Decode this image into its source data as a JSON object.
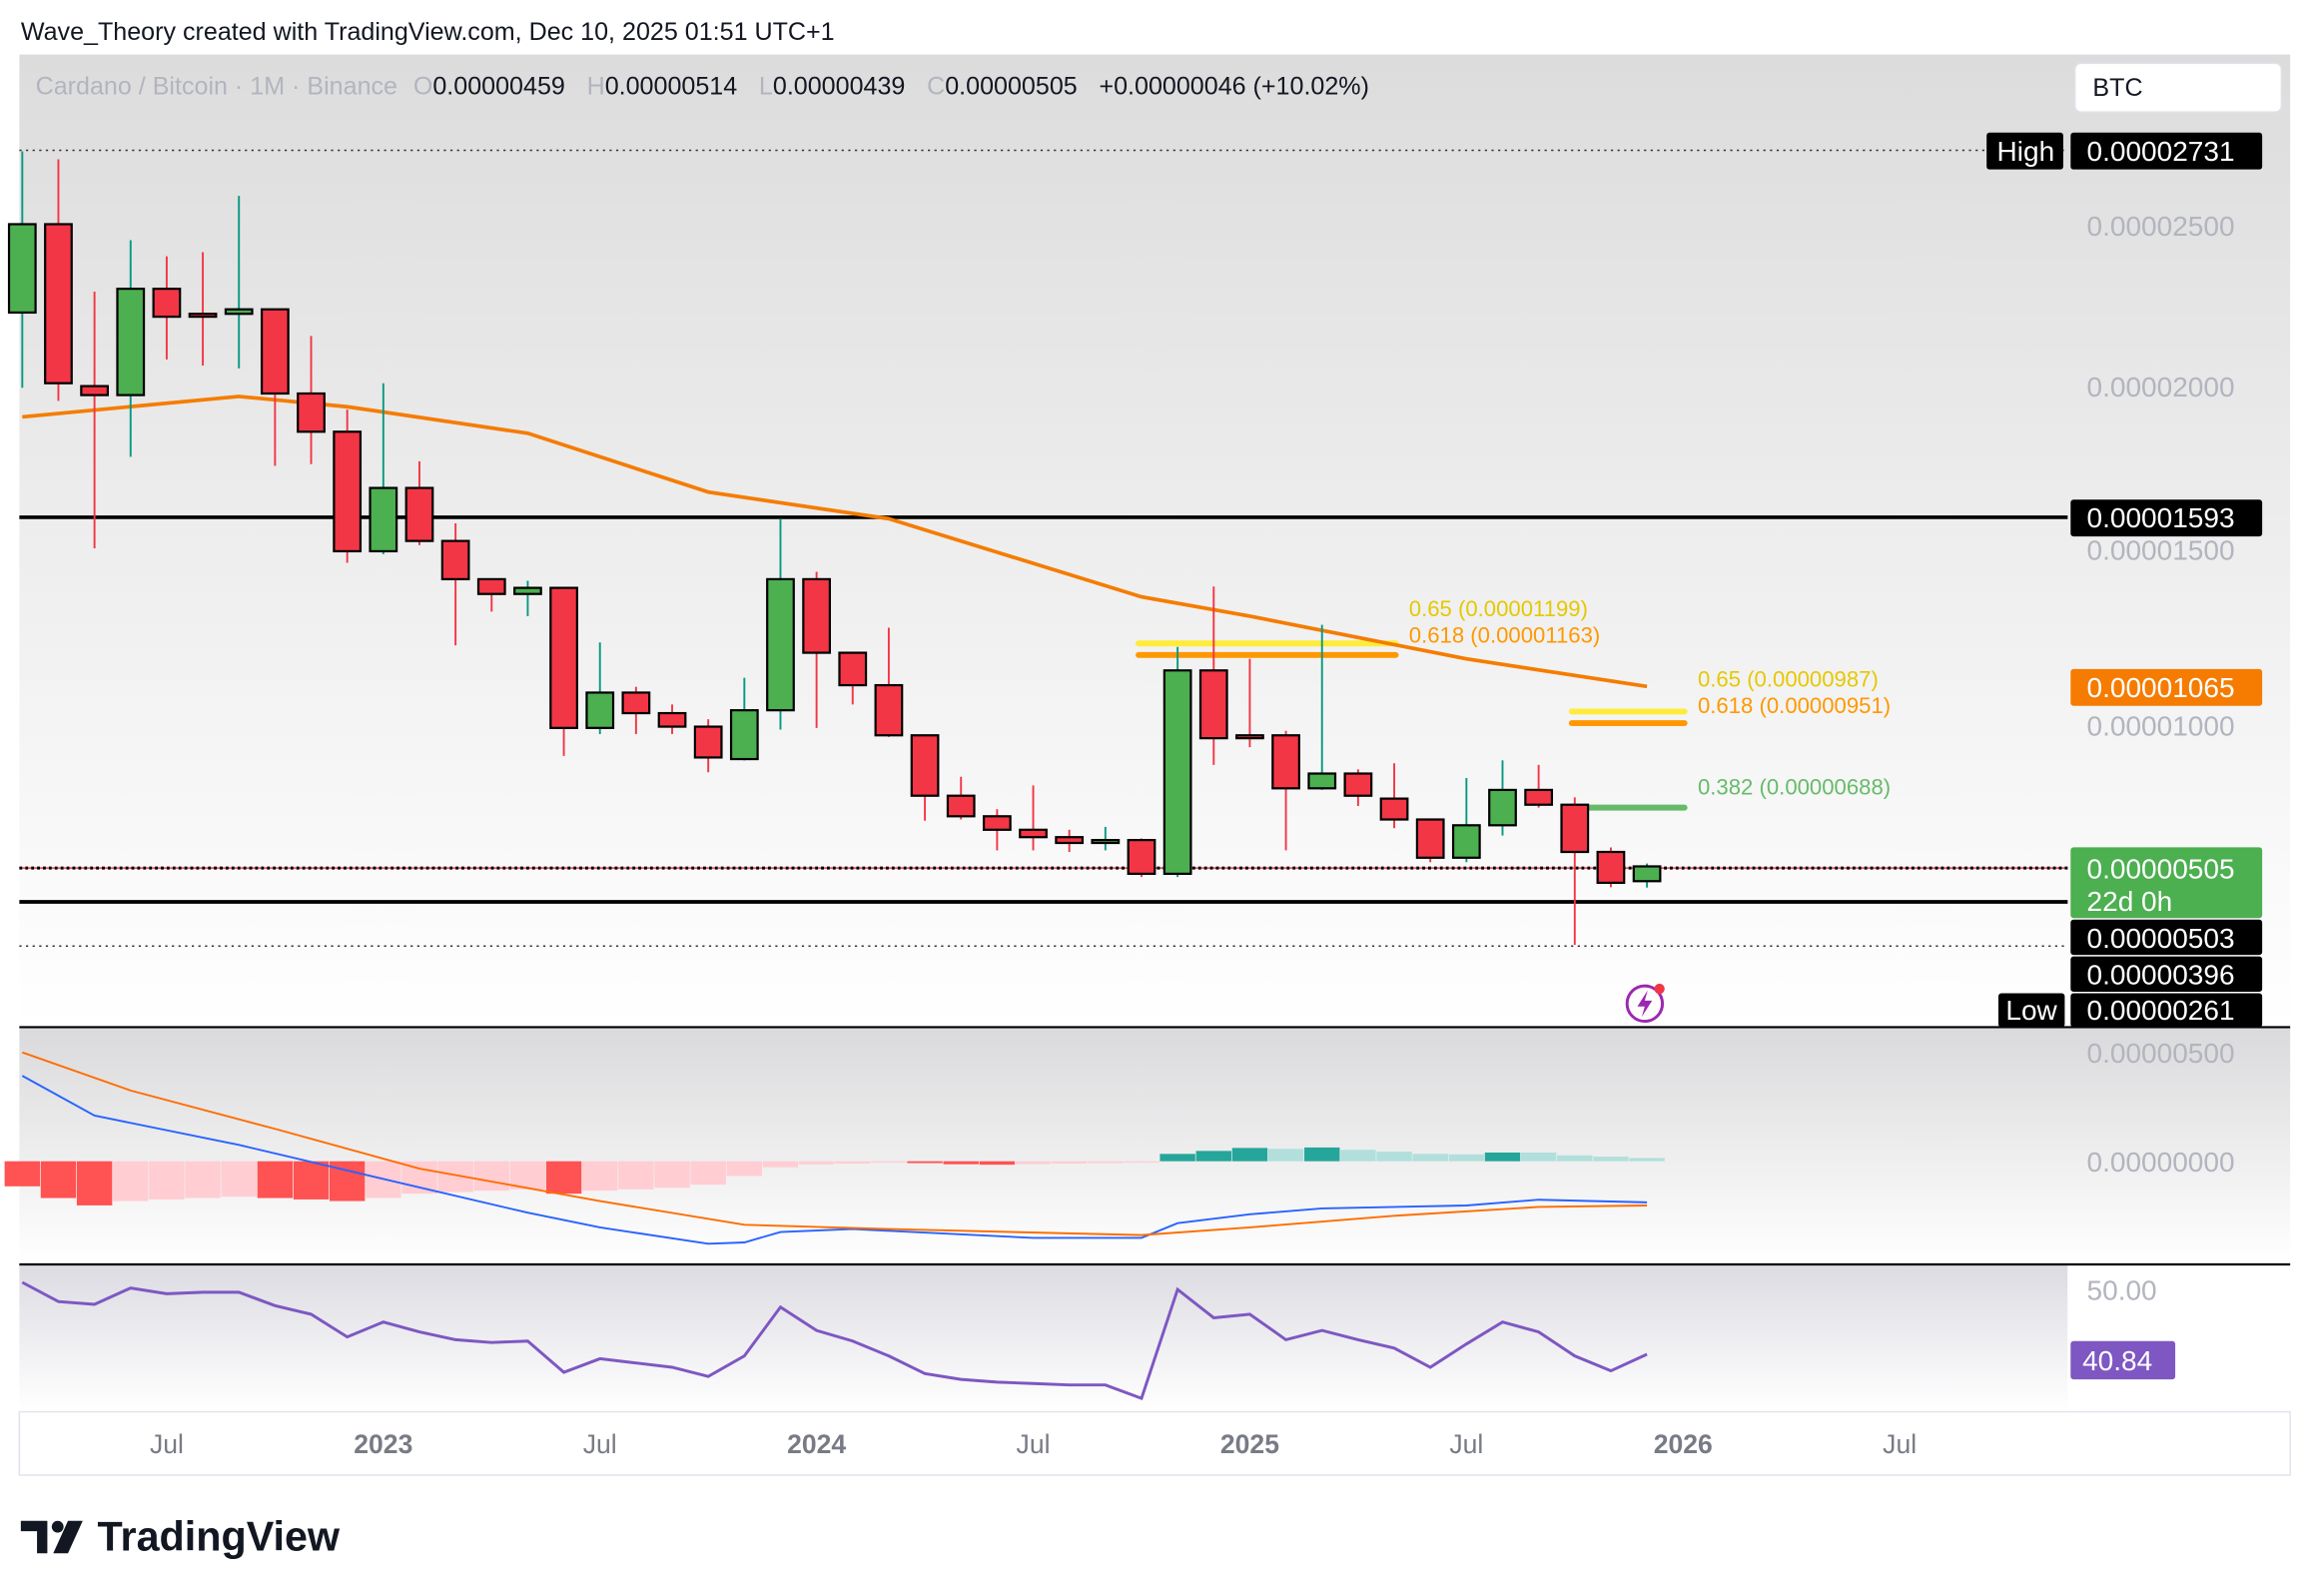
{
  "header": {
    "credit": "Wave_Theory created with TradingView.com, Dec 10, 2025 01:51 UTC+1"
  },
  "legend": {
    "symbol": "Cardano / Bitcoin · 1M · Binance",
    "o_label": "O",
    "o": "0.00000459",
    "h_label": "H",
    "h": "0.00000514",
    "l_label": "L",
    "l": "0.00000439",
    "c_label": "C",
    "c": "0.00000505",
    "change": "+0.00000046 (+10.02%)"
  },
  "currency_button": "BTC",
  "colors": {
    "up": "#4caf50",
    "down": "#f23645",
    "up_wick": "#089981",
    "ema": "#f57c00",
    "macd": "#2962ff",
    "signal": "#ff6d00",
    "rsi": "#7e57c2",
    "hist_up_strong": "#26a69a",
    "hist_up_weak": "#b2dfdb",
    "hist_down_strong": "#ff5252",
    "hist_down_weak": "#ffcdd2"
  },
  "price_axis": [
    "0.00002500",
    "0.00002000",
    "0.00001500",
    "0.00001000"
  ],
  "price_labels": {
    "high_tag": "High",
    "high": "0.00002731",
    "level_1593": "0.00001593",
    "ema": "0.00001065",
    "last": "0.00000505",
    "countdown": "22d 0h",
    "level_503": "0.00000503",
    "level_396": "0.00000396",
    "low_tag": "Low",
    "low": "0.00000261"
  },
  "fib": {
    "a_065": "0.65 (0.00001199)",
    "a_0618": "0.618 (0.00001163)",
    "b_065": "0.65 (0.00000987)",
    "b_0618": "0.618 (0.00000951)",
    "b_0382": "0.382 (0.00000688)"
  },
  "macd_axis": [
    "0.00000500",
    "0.00000000"
  ],
  "rsi_axis": "50.00",
  "rsi_value": "40.84",
  "time_axis": [
    {
      "label": "Jul",
      "month": 4
    },
    {
      "label": "2023",
      "month": 10
    },
    {
      "label": "Jul",
      "month": 16
    },
    {
      "label": "2024",
      "month": 22
    },
    {
      "label": "Jul",
      "month": 28
    },
    {
      "label": "2025",
      "month": 34
    },
    {
      "label": "Jul",
      "month": 40
    },
    {
      "label": "2026",
      "month": 46
    },
    {
      "label": "Jul",
      "month": 52
    }
  ],
  "footer": {
    "brand": "TradingView"
  },
  "chart_data": {
    "type": "candlestick",
    "symbol": "Cardano / Bitcoin",
    "interval": "1M",
    "exchange": "Binance",
    "start_month": "2022-03",
    "end_month": "2025-12",
    "ohlc": [
      [
        2.229e-05,
        2.731e-05,
        1.995e-05,
        2.504e-05
      ],
      [
        2.504e-05,
        2.706e-05,
        1.954e-05,
        2.009e-05
      ],
      [
        2e-05,
        2.294e-05,
        1.495e-05,
        1.972e-05
      ],
      [
        1.972e-05,
        2.454e-05,
        1.78e-05,
        2.303e-05
      ],
      [
        2.303e-05,
        2.404e-05,
        2.083e-05,
        2.216e-05
      ],
      [
        2.225e-05,
        2.417e-05,
        2.064e-05,
        2.216e-05
      ],
      [
        2.225e-05,
        2.592e-05,
        2.055e-05,
        2.239e-05
      ],
      [
        2.239e-05,
        2.239e-05,
        1.752e-05,
        1.977e-05
      ],
      [
        1.977e-05,
        2.156e-05,
        1.757e-05,
        1.858e-05
      ],
      [
        1.858e-05,
        1.927e-05,
        1.45e-05,
        1.486e-05
      ],
      [
        1.486e-05,
        2.009e-05,
        1.477e-05,
        1.683e-05
      ],
      [
        1.683e-05,
        1.766e-05,
        1.505e-05,
        1.518e-05
      ],
      [
        1.518e-05,
        1.573e-05,
        1.193e-05,
        1.399e-05
      ],
      [
        1.399e-05,
        1.399e-05,
        1.298e-05,
        1.353e-05
      ],
      [
        1.353e-05,
        1.394e-05,
        1.284e-05,
        1.372e-05
      ],
      [
        1.372e-05,
        1.372e-05,
        8.49e-06,
        9.36e-06
      ],
      [
        9.36e-06,
        1.202e-05,
        9.17e-06,
        1.046e-05
      ],
      [
        1.046e-05,
        1.064e-05,
        9.17e-06,
        9.82e-06
      ],
      [
        9.82e-06,
        1.009e-05,
        9.17e-06,
        9.4e-06
      ],
      [
        9.4e-06,
        9.63e-06,
        7.98e-06,
        8.44e-06
      ],
      [
        8.39e-06,
        1.092e-05,
        8.35e-06,
        9.91e-06
      ],
      [
        9.91e-06,
        1.587e-05,
        9.31e-06,
        1.399e-05
      ],
      [
        1.399e-05,
        1.422e-05,
        9.36e-06,
        1.17e-05
      ],
      [
        1.17e-05,
        1.17e-05,
        1.009e-05,
        1.069e-05
      ],
      [
        1.069e-05,
        1.248e-05,
        9.08e-06,
        9.13e-06
      ],
      [
        9.13e-06,
        9.13e-06,
        6.47e-06,
        7.25e-06
      ],
      [
        7.25e-06,
        7.84e-06,
        6.51e-06,
        6.61e-06
      ],
      [
        6.61e-06,
        6.83e-06,
        5.55e-06,
        6.19e-06
      ],
      [
        6.19e-06,
        7.57e-06,
        5.55e-06,
        5.96e-06
      ],
      [
        5.96e-06,
        6.19e-06,
        5.5e-06,
        5.78e-06
      ],
      [
        5.78e-06,
        6.28e-06,
        5.55e-06,
        5.87e-06
      ],
      [
        5.87e-06,
        5.92e-06,
        4.72e-06,
        4.82e-06
      ],
      [
        4.82e-06,
        1.188e-05,
        4.72e-06,
        1.115e-05
      ],
      [
        1.115e-05,
        1.376e-05,
        8.21e-06,
        9.04e-06
      ],
      [
        9.13e-06,
        1.151e-05,
        8.76e-06,
        9.04e-06
      ],
      [
        9.13e-06,
        9.27e-06,
        5.55e-06,
        7.48e-06
      ],
      [
        7.48e-06,
        1.257e-05,
        7.43e-06,
        7.94e-06
      ],
      [
        7.94e-06,
        8.07e-06,
        6.93e-06,
        7.25e-06
      ],
      [
        7.16e-06,
        8.26e-06,
        6.24e-06,
        6.51e-06
      ],
      [
        6.51e-06,
        6.51e-06,
        5.18e-06,
        5.32e-06
      ],
      [
        5.32e-06,
        7.8e-06,
        5.18e-06,
        6.33e-06
      ],
      [
        6.33e-06,
        8.35e-06,
        6.01e-06,
        7.43e-06
      ],
      [
        7.43e-06,
        8.21e-06,
        6.88e-06,
        6.97e-06
      ],
      [
        6.97e-06,
        7.2e-06,
        2.61e-06,
        5.5e-06
      ],
      [
        5.5e-06,
        5.64e-06,
        4.4e-06,
        4.54e-06
      ],
      [
        4.59e-06,
        5.14e-06,
        4.39e-06,
        5.05e-06
      ]
    ],
    "ema": [
      [
        0,
        1.904e-05
      ],
      [
        6,
        1.968e-05
      ],
      [
        9,
        1.936e-05
      ],
      [
        14,
        1.853e-05
      ],
      [
        19,
        1.67e-05
      ],
      [
        24,
        1.587e-05
      ],
      [
        31,
        1.344e-05
      ],
      [
        34,
        1.284e-05
      ],
      [
        40,
        1.151e-05
      ],
      [
        45,
        1.065e-05
      ]
    ],
    "horizontal_levels": [
      2.731e-05,
      1.593e-05,
      5.05e-06,
      3.96e-06,
      2.61e-06
    ],
    "fib_levels": [
      {
        "ratio": 0.65,
        "value": 1.199e-05,
        "from": 31,
        "to": 38,
        "color": "#ffeb3b"
      },
      {
        "ratio": 0.618,
        "value": 1.163e-05,
        "from": 31,
        "to": 38,
        "color": "#ff9800"
      },
      {
        "ratio": 0.65,
        "value": 9.87e-06,
        "from": 43,
        "to": 46,
        "color": "#ffeb3b"
      },
      {
        "ratio": 0.618,
        "value": 9.51e-06,
        "from": 43,
        "to": 46,
        "color": "#ff9800"
      },
      {
        "ratio": 0.382,
        "value": 6.88e-06,
        "from": 43,
        "to": 46,
        "color": "#66bb6a"
      }
    ],
    "macd_histogram": [
      -1.09e-06,
      -1.6e-06,
      -1.92e-06,
      -1.73e-06,
      -1.66e-06,
      -1.6e-06,
      -1.54e-06,
      -1.6e-06,
      -1.66e-06,
      -1.73e-06,
      -1.6e-06,
      -1.41e-06,
      -1.34e-06,
      -1.28e-06,
      -1.22e-06,
      -1.41e-06,
      -1.28e-06,
      -1.22e-06,
      -1.15e-06,
      -1.02e-06,
      -6.4e-07,
      -2.6e-07,
      -1.3e-07,
      -1e-07,
      -6e-08,
      -8e-08,
      -1.3e-07,
      -1.5e-07,
      -1.2e-07,
      -1e-07,
      -8e-08,
      -6e-08,
      3.2e-07,
      4.5e-07,
      5.8e-07,
      5.4e-07,
      6e-07,
      5e-07,
      4.2e-07,
      3.2e-07,
      3e-07,
      3.8e-07,
      3.8e-07,
      2.6e-07,
      2e-07,
      1.4e-07
    ],
    "macd_line": [
      [
        0,
        3.72e-06
      ],
      [
        2,
        1.99e-06
      ],
      [
        6,
        7.1e-07
      ],
      [
        10,
        -7.7e-07
      ],
      [
        14,
        -2.24e-06
      ],
      [
        16,
        -2.88e-06
      ],
      [
        19,
        -3.59e-06
      ],
      [
        20,
        -3.53e-06
      ],
      [
        21,
        -3.08e-06
      ],
      [
        23,
        -2.95e-06
      ],
      [
        28,
        -3.33e-06
      ],
      [
        31,
        -3.33e-06
      ],
      [
        32,
        -2.69e-06
      ],
      [
        34,
        -2.31e-06
      ],
      [
        36,
        -2.05e-06
      ],
      [
        40,
        -1.92e-06
      ],
      [
        42,
        -1.67e-06
      ],
      [
        45,
        -1.79e-06
      ]
    ],
    "signal_line": [
      [
        0,
        4.74e-06
      ],
      [
        3,
        3.08e-06
      ],
      [
        7,
        1.41e-06
      ],
      [
        11,
        -3.2e-07
      ],
      [
        16,
        -1.73e-06
      ],
      [
        20,
        -2.76e-06
      ],
      [
        24,
        -2.95e-06
      ],
      [
        31,
        -3.21e-06
      ],
      [
        34,
        -2.88e-06
      ],
      [
        38,
        -2.37e-06
      ],
      [
        42,
        -1.99e-06
      ],
      [
        45,
        -1.92e-06
      ]
    ],
    "rsi": [
      51.0,
      48.3,
      47.9,
      50.2,
      49.4,
      49.6,
      49.6,
      47.7,
      46.5,
      43.3,
      45.4,
      44.0,
      42.9,
      42.5,
      42.7,
      38.3,
      40.2,
      39.6,
      39.0,
      37.7,
      40.6,
      47.5,
      44.2,
      42.7,
      40.6,
      38.1,
      37.3,
      36.9,
      36.7,
      36.5,
      36.5,
      34.6,
      50.0,
      46.0,
      46.5,
      42.9,
      44.2,
      42.9,
      41.7,
      39.0,
      42.3,
      45.4,
      44.0,
      40.6,
      38.5,
      40.84
    ]
  }
}
